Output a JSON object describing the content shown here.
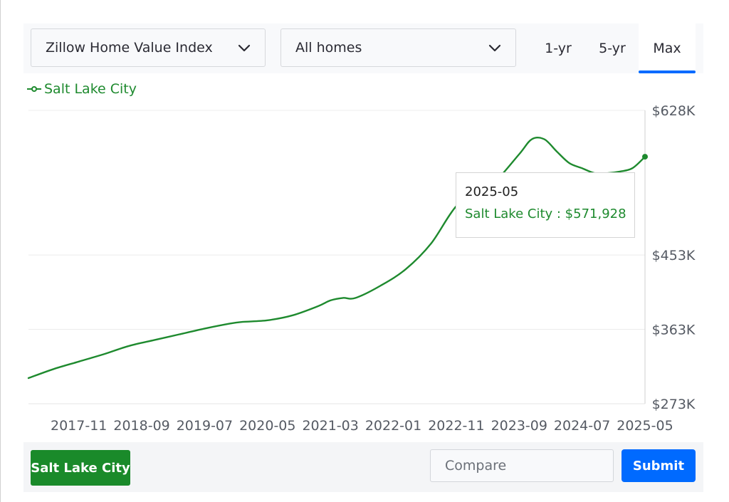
{
  "controls": {
    "metric_dropdown": "Zillow Home Value Index",
    "home_type_dropdown": "All homes",
    "ranges": [
      "1-yr",
      "5-yr",
      "Max"
    ],
    "active_range": "Max"
  },
  "legend": {
    "label": "Salt Lake City"
  },
  "tooltip": {
    "date": "2025-05",
    "value_text": "Salt Lake City : $571,928"
  },
  "footer": {
    "location_button": "Salt Lake City",
    "compare_placeholder": "Compare",
    "submit_label": "Submit"
  },
  "colors": {
    "series": "#1e8a2e",
    "accent": "#006aff",
    "location_button": "#1a8a2a"
  },
  "chart_data": {
    "type": "line",
    "title": "",
    "xlabel": "",
    "ylabel": "",
    "x_tick_labels": [
      "2017-11",
      "2018-09",
      "2019-07",
      "2020-05",
      "2021-03",
      "2022-01",
      "2022-11",
      "2023-09",
      "2024-07",
      "2025-05"
    ],
    "y_tick_labels": [
      "$628K",
      "$453K",
      "$363K",
      "$273K"
    ],
    "y_tick_values": [
      628000,
      453000,
      363000,
      273000
    ],
    "ylim": [
      273000,
      628000
    ],
    "x_range": [
      "2017-03",
      "2025-05"
    ],
    "grid": true,
    "series": [
      {
        "name": "Salt Lake City",
        "points": [
          [
            "2017-03",
            304000
          ],
          [
            "2017-07",
            315000
          ],
          [
            "2017-11",
            324000
          ],
          [
            "2018-03",
            333000
          ],
          [
            "2018-07",
            343000
          ],
          [
            "2018-11",
            350000
          ],
          [
            "2019-03",
            357000
          ],
          [
            "2019-07",
            364000
          ],
          [
            "2019-11",
            370000
          ],
          [
            "2020-01",
            372000
          ],
          [
            "2020-05",
            374000
          ],
          [
            "2020-09",
            380000
          ],
          [
            "2021-01",
            391000
          ],
          [
            "2021-03",
            398000
          ],
          [
            "2021-05",
            401000
          ],
          [
            "2021-07",
            401000
          ],
          [
            "2021-11",
            416000
          ],
          [
            "2022-03",
            436000
          ],
          [
            "2022-07",
            467000
          ],
          [
            "2022-11",
            512000
          ],
          [
            "2023-03",
            533000
          ],
          [
            "2023-05",
            540000
          ],
          [
            "2023-09",
            575000
          ],
          [
            "2023-11",
            593000
          ],
          [
            "2024-01",
            593000
          ],
          [
            "2024-03",
            578000
          ],
          [
            "2024-05",
            564000
          ],
          [
            "2024-07",
            558000
          ],
          [
            "2024-09",
            552000
          ],
          [
            "2024-11",
            552000
          ],
          [
            "2025-01",
            554000
          ],
          [
            "2025-03",
            558000
          ],
          [
            "2025-05",
            571928
          ]
        ]
      }
    ]
  }
}
